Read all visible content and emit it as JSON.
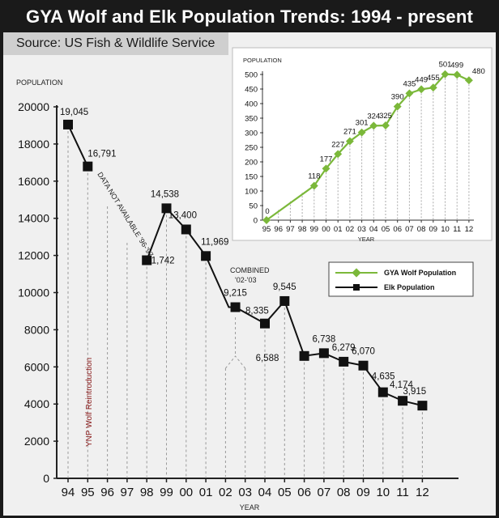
{
  "header": {
    "title": "GYA Wolf and Elk Population Trends: 1994 - present",
    "source": "Source: US Fish & Wildlife Service"
  },
  "colors": {
    "wolf": "#7bb83a",
    "elk": "#111111",
    "reintroduction_text": "#8a1a1a"
  },
  "annotations": {
    "data_not_available": "DATA NOT AVAILABLE '96-'97",
    "combined": [
      "COMBINED",
      "'02-'03"
    ],
    "reintroduction": "YNP Wolf Reintroduction"
  },
  "chart_data": [
    {
      "type": "line",
      "name": "elk",
      "ylabel": "POPULATION",
      "xlabel": "YEAR",
      "ylim": [
        0,
        20000
      ],
      "yticks": [
        "0",
        "2000",
        "4000",
        "6000",
        "8000",
        "10000",
        "12000",
        "14000",
        "16000",
        "18000",
        "20000"
      ],
      "categories": [
        "94",
        "95",
        "96",
        "97",
        "98",
        "99",
        "00",
        "01",
        "02",
        "03",
        "04",
        "05",
        "06",
        "07",
        "08",
        "09",
        "10",
        "11",
        "12"
      ],
      "series": [
        {
          "name": "Elk Population",
          "points": [
            {
              "x": "94",
              "y": 19045,
              "label": "19,045"
            },
            {
              "x": "95",
              "y": 16791,
              "label": "16,791"
            },
            {
              "x": "98",
              "y": 11742,
              "label": "11,742"
            },
            {
              "x": "99",
              "y": 14538,
              "label": "14,538"
            },
            {
              "x": "00",
              "y": 13400,
              "label": "13,400"
            },
            {
              "x": "01",
              "y": 11969,
              "label": "11,969"
            },
            {
              "x": "02.5",
              "y": 9215,
              "label": "9,215"
            },
            {
              "x": "04",
              "y": 8335,
              "label": "8,335"
            },
            {
              "x": "05",
              "y": 9545,
              "label": "9,545"
            },
            {
              "x": "06",
              "y": 6588,
              "label": "6,588"
            },
            {
              "x": "07",
              "y": 6738,
              "label": "6,738"
            },
            {
              "x": "08",
              "y": 6279,
              "label": "6,279"
            },
            {
              "x": "09",
              "y": 6070,
              "label": "6,070"
            },
            {
              "x": "10",
              "y": 4635,
              "label": "4,635"
            },
            {
              "x": "11",
              "y": 4174,
              "label": "4,174"
            },
            {
              "x": "12",
              "y": 3915,
              "label": "3,915"
            }
          ]
        }
      ]
    },
    {
      "type": "line",
      "name": "wolf",
      "ylabel": "POPULATION",
      "xlabel": "YEAR",
      "ylim": [
        0,
        500
      ],
      "yticks": [
        "0",
        "50",
        "100",
        "150",
        "200",
        "250",
        "300",
        "350",
        "400",
        "450",
        "500"
      ],
      "categories": [
        "95",
        "96",
        "97",
        "98",
        "99",
        "00",
        "01",
        "02",
        "03",
        "04",
        "05",
        "06",
        "07",
        "08",
        "09",
        "10",
        "11",
        "12"
      ],
      "series": [
        {
          "name": "GYA Wolf Population",
          "values": [
            0,
            null,
            null,
            null,
            118,
            177,
            227,
            271,
            301,
            324,
            325,
            390,
            435,
            449,
            455,
            501,
            499,
            480
          ]
        }
      ]
    }
  ],
  "legend": {
    "items": [
      "GYA Wolf Population",
      "Elk Population"
    ]
  }
}
